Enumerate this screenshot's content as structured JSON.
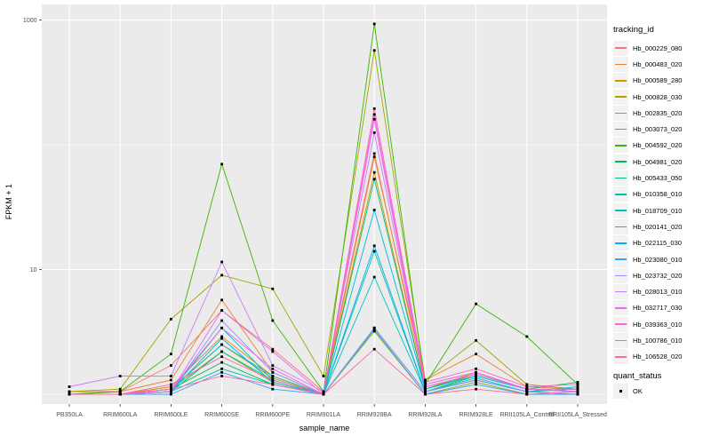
{
  "figure": {
    "background": "#FFFFFF",
    "panel_background": "#EBEBEB",
    "gridline_color": "#FFFFFF",
    "axis_text_color": "#4D4D4D",
    "tick_color": "#333333",
    "point_color": "#000000"
  },
  "x_axis": {
    "title": "sample_name"
  },
  "y_axis": {
    "title": "FPKM + 1",
    "tick_labels": [
      "1000",
      "10"
    ]
  },
  "legend": {
    "tracking_title": "tracking_id",
    "quant_title": "quant_status",
    "quant_items": [
      {
        "label": "OK"
      }
    ]
  },
  "chart_data": {
    "type": "line",
    "title": "",
    "xlabel": "sample_name",
    "ylabel": "FPKM + 1",
    "y_scale": "log10",
    "ylim": [
      1,
      1000
    ],
    "y_major_ticks": [
      1000,
      10
    ],
    "y_minor_gridlines": [
      100,
      1
    ],
    "grid": true,
    "legend_position": "right",
    "quant_status": "OK",
    "categories": [
      "PB350LA",
      "RRIM600LA",
      "RRIM600LE",
      "RRIM600SE",
      "RRIM600PE",
      "RRIM901LA",
      "RRIM928BA",
      "RRIM928LA",
      "RRIM928LE",
      "RRII105LA_Control",
      "RRII105LA_Stressed"
    ],
    "series": [
      {
        "name": "Hb_000229_080",
        "color": "#F8766D",
        "values": [
          1.05,
          1.05,
          1.7,
          4.7,
          2.3,
          1.05,
          85,
          1.15,
          1.4,
          1.1,
          1.05
        ]
      },
      {
        "name": "Hb_000483_020",
        "color": "#EA8331",
        "values": [
          1.0,
          1.05,
          1.3,
          5.7,
          1.5,
          1.0,
          80,
          1.3,
          2.1,
          1.15,
          1.1
        ]
      },
      {
        "name": "Hb_000589_280",
        "color": "#D89000",
        "values": [
          1.0,
          1.0,
          1.15,
          2.9,
          1.4,
          1.0,
          60,
          1.1,
          1.5,
          1.1,
          1.05
        ]
      },
      {
        "name": "Hb_000828_030",
        "color": "#C09B00",
        "values": [
          1.0,
          1.0,
          1.1,
          2.5,
          1.35,
          1.0,
          3.4,
          1.05,
          1.3,
          1.05,
          1.0
        ]
      },
      {
        "name": "Hb_002835_020",
        "color": "#A3A500",
        "values": [
          1.05,
          1.1,
          4.0,
          9.0,
          7.0,
          1.4,
          570,
          1.3,
          2.7,
          1.2,
          1.1
        ]
      },
      {
        "name": "Hb_003073_020",
        "color": "#7CAE00",
        "values": [
          1.0,
          1.0,
          1.1,
          2.2,
          1.25,
          1.0,
          3.2,
          1.0,
          1.25,
          1.0,
          1.0
        ]
      },
      {
        "name": "Hb_004592_020",
        "color": "#39B600",
        "values": [
          1.0,
          1.05,
          2.1,
          70,
          3.9,
          1.05,
          930,
          1.2,
          5.3,
          2.9,
          1.2
        ]
      },
      {
        "name": "Hb_004981_020",
        "color": "#00BB4E",
        "values": [
          1.0,
          1.0,
          1.1,
          1.8,
          1.2,
          1.0,
          3.4,
          1.05,
          1.4,
          1.1,
          1.05
        ]
      },
      {
        "name": "Hb_005433_050",
        "color": "#00BF7D",
        "values": [
          1.0,
          1.0,
          1.05,
          2.2,
          1.3,
          1.0,
          53,
          1.1,
          1.45,
          1.1,
          1.25
        ]
      },
      {
        "name": "Hb_010358_010",
        "color": "#00C1A3",
        "values": [
          1.0,
          1.0,
          1.05,
          1.6,
          1.2,
          1.0,
          14,
          1.05,
          1.3,
          1.05,
          1.1
        ]
      },
      {
        "name": "Hb_018709_010",
        "color": "#00BFC4",
        "values": [
          1.0,
          1.0,
          1.1,
          2.5,
          1.4,
          1.0,
          8.7,
          1.05,
          1.35,
          1.05,
          1.15
        ]
      },
      {
        "name": "Hb_020141_020",
        "color": "#00BAE0",
        "values": [
          1.0,
          1.0,
          1.05,
          3.4,
          1.3,
          1.0,
          30,
          1.1,
          1.4,
          1.1,
          1.05
        ]
      },
      {
        "name": "Hb_022115_030",
        "color": "#00B0F6",
        "values": [
          1.0,
          1.0,
          1.05,
          2.8,
          1.25,
          1.0,
          15.5,
          1.05,
          1.3,
          1.05,
          1.0
        ]
      },
      {
        "name": "Hb_023080_010",
        "color": "#35A2FF",
        "values": [
          1.0,
          1.0,
          1.0,
          1.5,
          1.1,
          1.0,
          3.3,
          1.0,
          1.2,
          1.0,
          1.0
        ]
      },
      {
        "name": "Hb_023732_020",
        "color": "#9590FF",
        "values": [
          1.0,
          1.0,
          1.05,
          3.9,
          1.5,
          1.0,
          3.4,
          1.05,
          1.3,
          1.05,
          1.0
        ]
      },
      {
        "name": "Hb_028013_010",
        "color": "#C77CFF",
        "values": [
          1.15,
          1.4,
          1.4,
          11.5,
          1.7,
          1.05,
          125,
          1.2,
          1.5,
          1.1,
          1.05
        ]
      },
      {
        "name": "Hb_032717_030",
        "color": "#E76BF3",
        "values": [
          1.0,
          1.0,
          1.05,
          4.7,
          2.2,
          1.0,
          160,
          1.15,
          1.45,
          1.1,
          1.05
        ]
      },
      {
        "name": "Hb_039363_010",
        "color": "#FA62DB",
        "values": [
          1.0,
          1.0,
          1.1,
          3.4,
          1.6,
          1.0,
          175,
          1.2,
          1.5,
          1.1,
          1.1
        ]
      },
      {
        "name": "Hb_100786_010",
        "color": "#FF62BC",
        "values": [
          1.0,
          1.0,
          1.2,
          2.0,
          1.3,
          1.0,
          195,
          1.25,
          1.6,
          1.15,
          1.2
        ]
      },
      {
        "name": "Hb_106528_020",
        "color": "#FF6A98",
        "values": [
          1.0,
          1.0,
          1.1,
          1.4,
          1.2,
          1.0,
          2.3,
          1.0,
          1.1,
          1.0,
          1.05
        ]
      }
    ]
  }
}
